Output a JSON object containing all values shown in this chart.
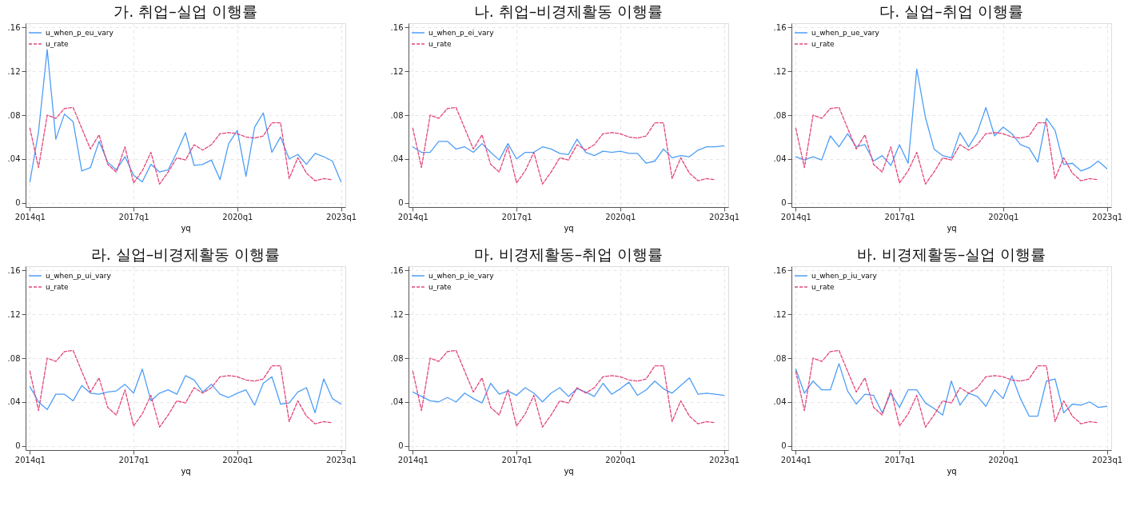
{
  "chart_data": [
    {
      "type": "line",
      "title": "가. 취업–실업 이행률",
      "xlabel": "yq",
      "legend": "top left",
      "grid": true,
      "categories": [
        "2014q1",
        null,
        null,
        null,
        null,
        null,
        null,
        null,
        null,
        null,
        null,
        null,
        "2017q1",
        null,
        null,
        null,
        null,
        null,
        null,
        null,
        null,
        null,
        null,
        null,
        "2020q1",
        null,
        null,
        null,
        null,
        null,
        null,
        null,
        null,
        null,
        null,
        null,
        "2023q1"
      ],
      "ylim": [
        -0.004,
        0.164
      ],
      "yticks": [
        0,
        {
          "value": 0.04,
          "label": ".04"
        },
        {
          "value": 0.08,
          "label": ".08"
        },
        {
          "value": 0.12,
          "label": ".12"
        },
        {
          "value": 0.16,
          "label": ".16"
        }
      ],
      "series": [
        {
          "name": "u_when_p_eu_vary",
          "color": "#4d9ef7",
          "line_style": "solid",
          "values": [
            0.019,
            0.065,
            0.14,
            0.058,
            0.081,
            0.074,
            0.029,
            0.032,
            0.056,
            0.037,
            0.03,
            0.042,
            0.025,
            0.019,
            0.035,
            0.028,
            0.03,
            0.046,
            0.064,
            0.034,
            0.035,
            0.039,
            0.021,
            0.054,
            0.066,
            0.024,
            0.069,
            0.082,
            0.046,
            0.06,
            0.04,
            0.044,
            0.035,
            0.045,
            0.042,
            0.038,
            0.019
          ]
        },
        {
          "name": "u_rate",
          "color": "#e2457a",
          "line_style": "dashed",
          "values": [
            0.068,
            0.032,
            0.08,
            0.077,
            0.086,
            0.087,
            0.068,
            0.049,
            0.062,
            0.035,
            0.028,
            0.051,
            0.018,
            0.029,
            0.046,
            0.017,
            0.028,
            0.041,
            0.039,
            0.053,
            0.048,
            0.053,
            0.063,
            0.064,
            0.063,
            0.06,
            0.059,
            0.061,
            0.073,
            0.073,
            0.022,
            0.041,
            0.027,
            0.02,
            0.022,
            0.021,
            null
          ]
        }
      ]
    },
    {
      "type": "line",
      "title": "나. 취업–비경제활동 이행률",
      "xlabel": "yq",
      "legend": "top left",
      "grid": true,
      "categories": [
        "2014q1",
        null,
        null,
        null,
        null,
        null,
        null,
        null,
        null,
        null,
        null,
        null,
        "2017q1",
        null,
        null,
        null,
        null,
        null,
        null,
        null,
        null,
        null,
        null,
        null,
        "2020q1",
        null,
        null,
        null,
        null,
        null,
        null,
        null,
        null,
        null,
        null,
        null,
        "2023q1"
      ],
      "ylim": [
        -0.004,
        0.164
      ],
      "yticks": [
        0,
        {
          "value": 0.04,
          "label": ".04"
        },
        {
          "value": 0.08,
          "label": ".08"
        },
        {
          "value": 0.12,
          "label": ".12"
        },
        {
          "value": 0.16,
          "label": ".16"
        }
      ],
      "series": [
        {
          "name": "u_when_p_ei_vary",
          "color": "#4d9ef7",
          "line_style": "solid",
          "values": [
            0.051,
            0.046,
            0.046,
            0.056,
            0.056,
            0.049,
            0.051,
            0.046,
            0.054,
            0.046,
            0.039,
            0.054,
            0.04,
            0.046,
            0.046,
            0.051,
            0.049,
            0.045,
            0.044,
            0.058,
            0.046,
            0.043,
            0.047,
            0.046,
            0.047,
            0.045,
            0.045,
            0.036,
            0.038,
            0.049,
            0.041,
            0.043,
            0.042,
            0.048,
            0.051,
            0.051,
            0.052
          ]
        },
        {
          "name": "u_rate",
          "color": "#e2457a",
          "line_style": "dashed",
          "values": [
            0.068,
            0.032,
            0.08,
            0.077,
            0.086,
            0.087,
            0.068,
            0.049,
            0.062,
            0.035,
            0.028,
            0.051,
            0.018,
            0.029,
            0.046,
            0.017,
            0.028,
            0.041,
            0.039,
            0.053,
            0.048,
            0.053,
            0.063,
            0.064,
            0.063,
            0.06,
            0.059,
            0.061,
            0.073,
            0.073,
            0.022,
            0.041,
            0.027,
            0.02,
            0.022,
            0.021,
            null
          ]
        }
      ]
    },
    {
      "type": "line",
      "title": "다. 실업–취업 이행률",
      "xlabel": "yq",
      "legend": "top left",
      "grid": true,
      "categories": [
        "2014q1",
        null,
        null,
        null,
        null,
        null,
        null,
        null,
        null,
        null,
        null,
        null,
        "2017q1",
        null,
        null,
        null,
        null,
        null,
        null,
        null,
        null,
        null,
        null,
        null,
        "2020q1",
        null,
        null,
        null,
        null,
        null,
        null,
        null,
        null,
        null,
        null,
        null,
        "2023q1"
      ],
      "ylim": [
        -0.004,
        0.164
      ],
      "yticks": [
        0,
        {
          "value": 0.04,
          "label": ".04"
        },
        {
          "value": 0.08,
          "label": ".08"
        },
        {
          "value": 0.12,
          "label": ".12"
        },
        {
          "value": 0.16,
          "label": ".16"
        }
      ],
      "series": [
        {
          "name": "u_when_p_ue_vary",
          "color": "#4d9ef7",
          "line_style": "solid",
          "values": [
            0.042,
            0.039,
            0.042,
            0.039,
            0.061,
            0.051,
            0.063,
            0.051,
            0.053,
            0.038,
            0.043,
            0.034,
            0.053,
            0.036,
            0.122,
            0.078,
            0.049,
            0.043,
            0.041,
            0.064,
            0.051,
            0.064,
            0.087,
            0.061,
            0.069,
            0.063,
            0.053,
            0.05,
            0.037,
            0.077,
            0.066,
            0.035,
            0.036,
            0.029,
            0.032,
            0.038,
            0.031
          ]
        },
        {
          "name": "u_rate",
          "color": "#e2457a",
          "line_style": "dashed",
          "values": [
            0.068,
            0.032,
            0.08,
            0.077,
            0.086,
            0.087,
            0.068,
            0.049,
            0.062,
            0.035,
            0.028,
            0.051,
            0.018,
            0.029,
            0.046,
            0.017,
            0.028,
            0.041,
            0.039,
            0.053,
            0.048,
            0.053,
            0.063,
            0.064,
            0.063,
            0.06,
            0.059,
            0.061,
            0.073,
            0.073,
            0.022,
            0.041,
            0.027,
            0.02,
            0.022,
            0.021,
            null
          ]
        }
      ]
    },
    {
      "type": "line",
      "title": "라. 실업–비경제활동 이행률",
      "xlabel": "yq",
      "legend": "top left",
      "grid": true,
      "categories": [
        "2014q1",
        null,
        null,
        null,
        null,
        null,
        null,
        null,
        null,
        null,
        null,
        null,
        "2017q1",
        null,
        null,
        null,
        null,
        null,
        null,
        null,
        null,
        null,
        null,
        null,
        "2020q1",
        null,
        null,
        null,
        null,
        null,
        null,
        null,
        null,
        null,
        null,
        null,
        "2023q1"
      ],
      "ylim": [
        -0.004,
        0.164
      ],
      "yticks": [
        0,
        {
          "value": 0.04,
          "label": ".04"
        },
        {
          "value": 0.08,
          "label": ".08"
        },
        {
          "value": 0.12,
          "label": ".12"
        },
        {
          "value": 0.16,
          "label": ".16"
        }
      ],
      "series": [
        {
          "name": "u_when_p_ui_vary",
          "color": "#4d9ef7",
          "line_style": "solid",
          "values": [
            0.054,
            0.04,
            0.033,
            0.047,
            0.047,
            0.041,
            0.055,
            0.048,
            0.047,
            0.049,
            0.05,
            0.056,
            0.048,
            0.07,
            0.041,
            0.048,
            0.051,
            0.047,
            0.064,
            0.06,
            0.049,
            0.056,
            0.047,
            0.044,
            0.048,
            0.051,
            0.037,
            0.057,
            0.063,
            0.038,
            0.039,
            0.049,
            0.053,
            0.03,
            0.061,
            0.043,
            0.038
          ]
        },
        {
          "name": "u_rate",
          "color": "#e2457a",
          "line_style": "dashed",
          "values": [
            0.068,
            0.032,
            0.08,
            0.077,
            0.086,
            0.087,
            0.068,
            0.049,
            0.062,
            0.035,
            0.028,
            0.051,
            0.018,
            0.029,
            0.046,
            0.017,
            0.028,
            0.041,
            0.039,
            0.053,
            0.048,
            0.053,
            0.063,
            0.064,
            0.063,
            0.06,
            0.059,
            0.061,
            0.073,
            0.073,
            0.022,
            0.041,
            0.027,
            0.02,
            0.022,
            0.021,
            null
          ]
        }
      ]
    },
    {
      "type": "line",
      "title": "마. 비경제활동–취업 이행률",
      "xlabel": "yq",
      "legend": "top left",
      "grid": true,
      "categories": [
        "2014q1",
        null,
        null,
        null,
        null,
        null,
        null,
        null,
        null,
        null,
        null,
        null,
        "2017q1",
        null,
        null,
        null,
        null,
        null,
        null,
        null,
        null,
        null,
        null,
        null,
        "2020q1",
        null,
        null,
        null,
        null,
        null,
        null,
        null,
        null,
        null,
        null,
        null,
        "2023q1"
      ],
      "ylim": [
        -0.004,
        0.164
      ],
      "yticks": [
        0,
        {
          "value": 0.04,
          "label": ".04"
        },
        {
          "value": 0.08,
          "label": ".08"
        },
        {
          "value": 0.12,
          "label": ".12"
        },
        {
          "value": 0.16,
          "label": ".16"
        }
      ],
      "series": [
        {
          "name": "u_when_p_ie_vary",
          "color": "#4d9ef7",
          "line_style": "solid",
          "values": [
            0.049,
            0.045,
            0.041,
            0.04,
            0.044,
            0.04,
            0.048,
            0.043,
            0.039,
            0.057,
            0.047,
            0.05,
            0.046,
            0.053,
            0.048,
            0.04,
            0.048,
            0.053,
            0.045,
            0.052,
            0.049,
            0.045,
            0.057,
            0.047,
            0.052,
            0.058,
            0.046,
            0.051,
            0.059,
            0.052,
            0.048,
            0.055,
            0.062,
            0.047,
            0.048,
            0.047,
            0.046
          ]
        },
        {
          "name": "u_rate",
          "color": "#e2457a",
          "line_style": "dashed",
          "values": [
            0.068,
            0.032,
            0.08,
            0.077,
            0.086,
            0.087,
            0.068,
            0.049,
            0.062,
            0.035,
            0.028,
            0.051,
            0.018,
            0.029,
            0.046,
            0.017,
            0.028,
            0.041,
            0.039,
            0.053,
            0.048,
            0.053,
            0.063,
            0.064,
            0.063,
            0.06,
            0.059,
            0.061,
            0.073,
            0.073,
            0.022,
            0.041,
            0.027,
            0.02,
            0.022,
            0.021,
            null
          ]
        }
      ]
    },
    {
      "type": "line",
      "title": "바. 비경제활동–실업 이행률",
      "xlabel": "yq",
      "legend": "top left",
      "grid": true,
      "categories": [
        "2014q1",
        null,
        null,
        null,
        null,
        null,
        null,
        null,
        null,
        null,
        null,
        null,
        "2017q1",
        null,
        null,
        null,
        null,
        null,
        null,
        null,
        null,
        null,
        null,
        null,
        "2020q1",
        null,
        null,
        null,
        null,
        null,
        null,
        null,
        null,
        null,
        null,
        null,
        "2023q1"
      ],
      "ylim": [
        -0.004,
        0.164
      ],
      "yticks": [
        0,
        {
          "value": 0.04,
          "label": ".04"
        },
        {
          "value": 0.08,
          "label": ".08"
        },
        {
          "value": 0.12,
          "label": ".12"
        },
        {
          "value": 0.16,
          "label": ".16"
        }
      ],
      "series": [
        {
          "name": "u_when_p_iu_vary",
          "color": "#4d9ef7",
          "line_style": "solid",
          "values": [
            0.07,
            0.048,
            0.059,
            0.051,
            0.051,
            0.075,
            0.05,
            0.038,
            0.047,
            0.046,
            0.03,
            0.048,
            0.035,
            0.051,
            0.051,
            0.039,
            0.034,
            0.028,
            0.059,
            0.037,
            0.048,
            0.045,
            0.036,
            0.051,
            0.043,
            0.064,
            0.043,
            0.027,
            0.027,
            0.059,
            0.061,
            0.03,
            0.038,
            0.037,
            0.04,
            0.035,
            0.036
          ]
        },
        {
          "name": "u_rate",
          "color": "#e2457a",
          "line_style": "dashed",
          "values": [
            0.068,
            0.032,
            0.08,
            0.077,
            0.086,
            0.087,
            0.068,
            0.049,
            0.062,
            0.035,
            0.028,
            0.051,
            0.018,
            0.029,
            0.046,
            0.017,
            0.028,
            0.041,
            0.039,
            0.053,
            0.048,
            0.053,
            0.063,
            0.064,
            0.063,
            0.06,
            0.059,
            0.061,
            0.073,
            0.073,
            0.022,
            0.041,
            0.027,
            0.02,
            0.022,
            0.021,
            null
          ]
        }
      ]
    }
  ]
}
